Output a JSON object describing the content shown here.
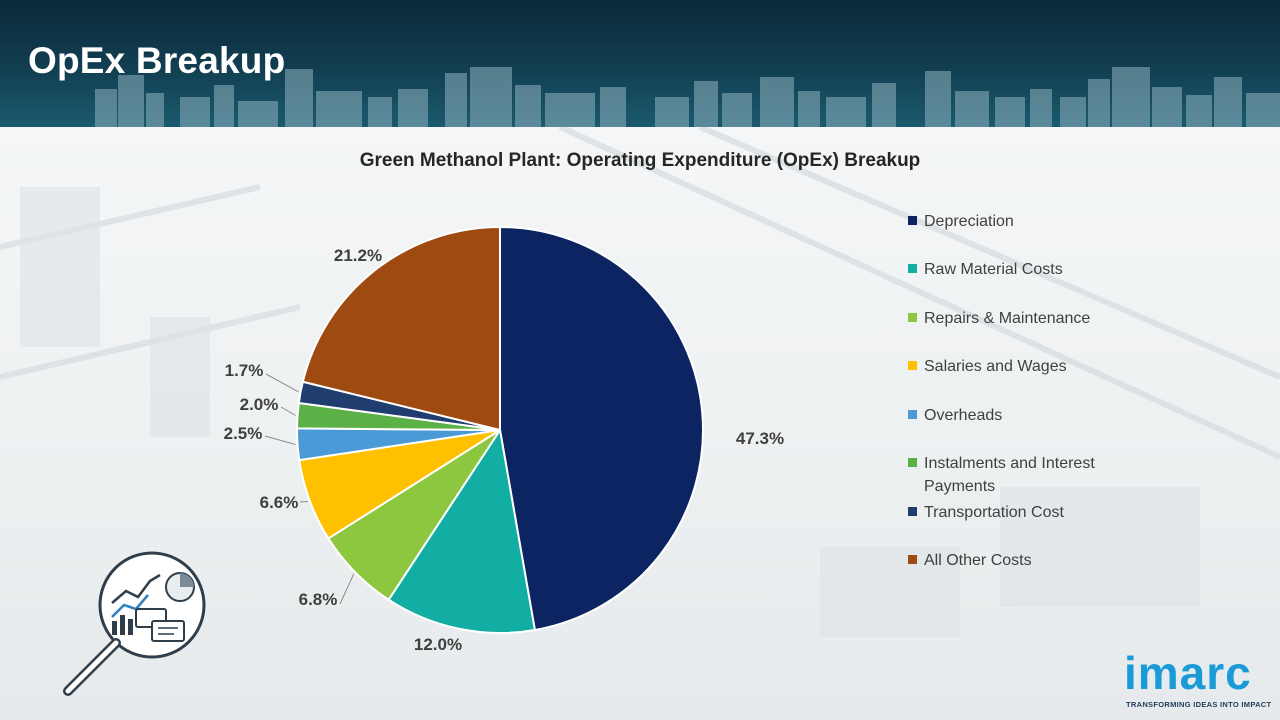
{
  "page": {
    "title": "OpEx Breakup"
  },
  "chart_data": {
    "type": "pie",
    "title": "Green Methanol Plant: Operating Expenditure (OpEx) Breakup",
    "categories": [
      "Depreciation",
      "Raw Material Costs",
      "Repairs & Maintenance",
      "Salaries and Wages",
      "Overheads",
      "Instalments and Interest Payments",
      "Transportation Cost",
      "All Other Costs"
    ],
    "values": [
      47.3,
      12.0,
      6.8,
      6.6,
      2.5,
      2.0,
      1.7,
      21.2
    ],
    "data_labels": [
      "47.3%",
      "12.0%",
      "6.8%",
      "6.6%",
      "2.5%",
      "2.0%",
      "1.7%",
      "21.2%"
    ],
    "colors": [
      "#0c2461",
      "#12ada3",
      "#8dc63f",
      "#ffc000",
      "#4a9ad8",
      "#5cb146",
      "#1f3d6e",
      "#9e4a10"
    ],
    "legend_position": "right"
  },
  "logo": {
    "text": "imarc",
    "tagline": "TRANSFORMING IDEAS INTO IMPACT"
  },
  "icons": {
    "illustration": "analytics-magnifier-icon"
  }
}
